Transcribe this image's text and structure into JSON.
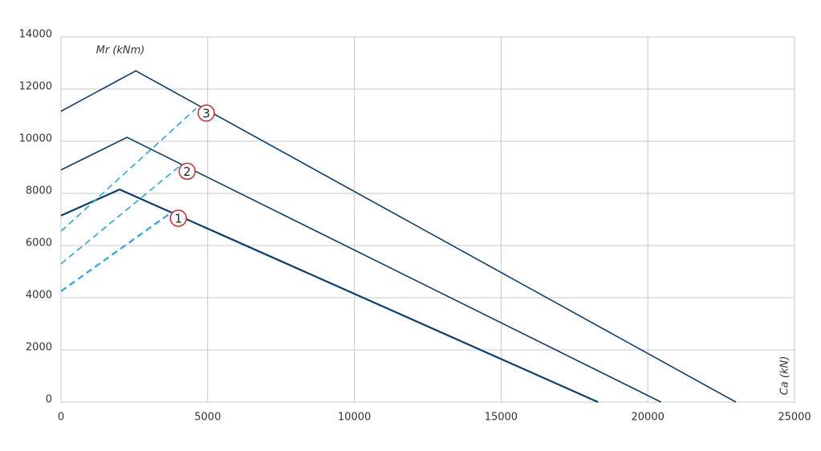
{
  "chart_data": {
    "type": "line",
    "x_label": "Ca (kN)",
    "y_label": "Mr (kNm)",
    "xlim": [
      0,
      25000
    ],
    "xticks": [
      0,
      5000,
      10000,
      15000,
      20000,
      25000
    ],
    "ylim": [
      0,
      14000
    ],
    "yticks": [
      0,
      2000,
      4000,
      6000,
      8000,
      10000,
      12000,
      14000
    ],
    "grid": true,
    "series": [
      {
        "x": [
          0,
          2000,
          18300
        ],
        "values": [
          7150,
          8150,
          0
        ],
        "color": "#0b3f73",
        "width": 2.2,
        "dashed": false
      },
      {
        "x": [
          0,
          2250,
          20450
        ],
        "values": [
          8900,
          10150,
          0
        ],
        "color": "#0b3f73",
        "width": 1.6,
        "dashed": false
      },
      {
        "x": [
          0,
          2550,
          23000
        ],
        "values": [
          11150,
          12700,
          0
        ],
        "color": "#0b3f73",
        "width": 1.6,
        "dashed": false
      },
      {
        "x": [
          0,
          3800
        ],
        "values": [
          4250,
          7300
        ],
        "color": "#27a9e1",
        "width": 2.2,
        "dashed": true
      },
      {
        "x": [
          0,
          4100
        ],
        "values": [
          5300,
          9100
        ],
        "color": "#27a9e1",
        "width": 1.6,
        "dashed": true
      },
      {
        "x": [
          0,
          4600
        ],
        "values": [
          6550,
          11250
        ],
        "color": "#27a9e1",
        "width": 1.6,
        "dashed": true
      }
    ],
    "annotations": [
      {
        "label": "1",
        "x": 4000,
        "y": 7050,
        "color": "#d7262e"
      },
      {
        "label": "2",
        "x": 4300,
        "y": 8850,
        "color": "#d7262e"
      },
      {
        "label": "3",
        "x": 4950,
        "y": 11080,
        "color": "#d7262e"
      }
    ]
  }
}
